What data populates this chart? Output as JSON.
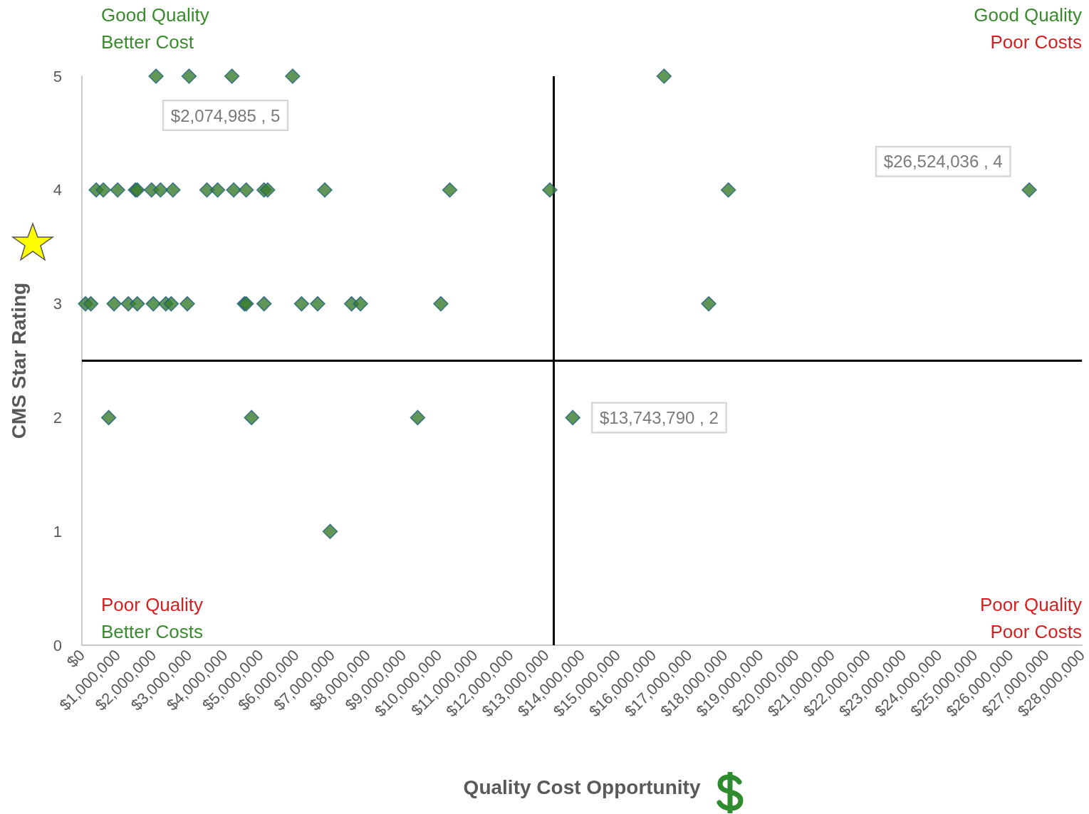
{
  "chart_data": {
    "type": "scatter",
    "xlabel": "Quality Cost Opportunity",
    "ylabel": "CMS Star Rating",
    "annotations": [
      "Good Quality",
      "Better Cost",
      "Good Quality",
      "Poor Costs",
      "Poor Quality",
      "Better Costs",
      "Poor Quality",
      "Poor Costs"
    ],
    "series": [
      {
        "color": "#3a7d2c",
        "x": [
          2074985,
          3000000,
          4200000,
          5900000,
          16300000,
          400000,
          600000,
          1000000,
          1500000,
          1550000,
          1950000,
          2200000,
          2550000,
          3500000,
          3800000,
          4250000,
          4600000,
          5100000,
          5200000,
          6800000,
          10300000,
          13100000,
          18100000,
          26524036,
          100000,
          250000,
          900000,
          1300000,
          1550000,
          2000000,
          2350000,
          2500000,
          2950000,
          4550000,
          4600000,
          5100000,
          6150000,
          6600000,
          7550000,
          7800000,
          10050000,
          17550000,
          750000,
          4750000,
          9400000,
          13743790,
          6950000
        ],
        "values": [
          5,
          5,
          5,
          5,
          5,
          4,
          4,
          4,
          4,
          4,
          4,
          4,
          4,
          4,
          4,
          4,
          4,
          4,
          4,
          4,
          4,
          4,
          4,
          4,
          3,
          3,
          3,
          3,
          3,
          3,
          3,
          3,
          3,
          3,
          3,
          3,
          3,
          3,
          3,
          3,
          3,
          3,
          2,
          2,
          2,
          2,
          1
        ],
        "value_labels": [
          "$2,074,985 , 5",
          null,
          null,
          null,
          null,
          null,
          null,
          null,
          null,
          null,
          null,
          null,
          null,
          null,
          null,
          null,
          null,
          null,
          null,
          null,
          null,
          null,
          null,
          "$26,524,036 , 4",
          null,
          null,
          null,
          null,
          null,
          null,
          null,
          null,
          null,
          null,
          null,
          null,
          null,
          null,
          null,
          null,
          null,
          null,
          null,
          null,
          null,
          "$13,743,790 , 2",
          null
        ]
      }
    ],
    "xlim": [
      0,
      28000000
    ],
    "xticks": [
      {
        "value": 0,
        "label": "$0"
      },
      {
        "value": 1000000,
        "label": "$1,000,000"
      },
      {
        "value": 2000000,
        "label": "$2,000,000"
      },
      {
        "value": 3000000,
        "label": "$3,000,000"
      },
      {
        "value": 4000000,
        "label": "$4,000,000"
      },
      {
        "value": 5000000,
        "label": "$5,000,000"
      },
      {
        "value": 6000000,
        "label": "$6,000,000"
      },
      {
        "value": 7000000,
        "label": "$7,000,000"
      },
      {
        "value": 8000000,
        "label": "$8,000,000"
      },
      {
        "value": 9000000,
        "label": "$9,000,000"
      },
      {
        "value": 10000000,
        "label": "$10,000,000"
      },
      {
        "value": 11000000,
        "label": "$11,000,000"
      },
      {
        "value": 12000000,
        "label": "$12,000,000"
      },
      {
        "value": 13000000,
        "label": "$13,000,000"
      },
      {
        "value": 14000000,
        "label": "$14,000,000"
      },
      {
        "value": 15000000,
        "label": "$15,000,000"
      },
      {
        "value": 16000000,
        "label": "$16,000,000"
      },
      {
        "value": 17000000,
        "label": "$17,000,000"
      },
      {
        "value": 18000000,
        "label": "$18,000,000"
      },
      {
        "value": 19000000,
        "label": "$19,000,000"
      },
      {
        "value": 20000000,
        "label": "$20,000,000"
      },
      {
        "value": 21000000,
        "label": "$21,000,000"
      },
      {
        "value": 22000000,
        "label": "$22,000,000"
      },
      {
        "value": 23000000,
        "label": "$23,000,000"
      },
      {
        "value": 24000000,
        "label": "$24,000,000"
      },
      {
        "value": 25000000,
        "label": "$25,000,000"
      },
      {
        "value": 26000000,
        "label": "$26,000,000"
      },
      {
        "value": 27000000,
        "label": "$27,000,000"
      },
      {
        "value": 28000000,
        "label": "$28,000,000"
      }
    ],
    "ylim": [
      0,
      5
    ],
    "yticks": [
      0,
      1,
      2,
      3,
      4,
      5
    ],
    "grid": false,
    "marker": "diamond",
    "ref_lines": [
      {
        "axis": "x",
        "value": 13200000,
        "color": "#000000"
      },
      {
        "axis": "y",
        "value": 2.5,
        "color": "#000000"
      }
    ]
  }
}
